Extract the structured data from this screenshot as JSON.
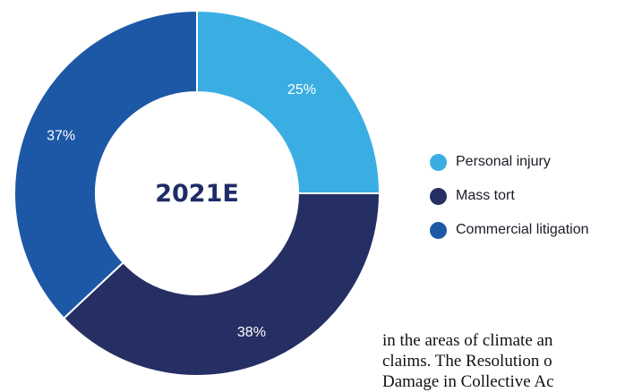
{
  "chart_data": {
    "type": "pie",
    "title": "2021E",
    "categories": [
      "Personal injury",
      "Mass tort",
      "Commercial litigation"
    ],
    "values": [
      25,
      38,
      37
    ],
    "value_labels": [
      "25%",
      "38%",
      "37%"
    ],
    "colors": [
      "#3aaee2",
      "#262f63",
      "#1c58a6"
    ],
    "legend_position": "right"
  },
  "body_text": {
    "lines": [
      "in the areas of climate an",
      "claims. The Resolution o",
      "Damage in Collective Ac"
    ]
  }
}
